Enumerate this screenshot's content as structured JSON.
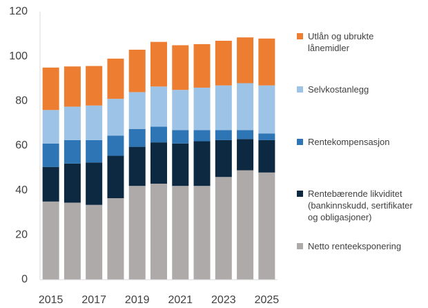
{
  "chart_data": {
    "type": "bar",
    "stacked": true,
    "categories": [
      "2015",
      null,
      "2017",
      null,
      "2019",
      null,
      "2021",
      null,
      "2023",
      null,
      "2025"
    ],
    "series": [
      {
        "name": "Netto renteeksponering",
        "color": "#aeaaaa",
        "values": [
          35,
          34.5,
          33.5,
          36.5,
          42,
          43,
          42,
          42,
          46,
          49,
          48
        ]
      },
      {
        "name": "Rentebærende likviditet (bankinnskudd, sertifikater og obligasjoner)",
        "color": "#0d2841",
        "values": [
          15.5,
          17.5,
          19,
          19,
          17.5,
          18.5,
          19,
          20,
          16.5,
          14,
          14.5
        ]
      },
      {
        "name": "Rentekompensasjon",
        "color": "#2e75b6",
        "values": [
          10.5,
          10.5,
          10,
          9,
          8,
          7,
          6,
          5,
          4.5,
          4,
          3
        ]
      },
      {
        "name": "Selvkostanlegg",
        "color": "#9dc3e6",
        "values": [
          15,
          15,
          15.5,
          16.5,
          16.5,
          18,
          18,
          19,
          20,
          21,
          21.5
        ]
      },
      {
        "name": "Utlån og ubrukte lånemidler",
        "color": "#ed7d31",
        "values": [
          19,
          18,
          17.7,
          18,
          19,
          20,
          20,
          19.5,
          20,
          20.5,
          21
        ]
      }
    ],
    "ylim": [
      0,
      120
    ],
    "yticks": [
      0,
      20,
      40,
      60,
      80,
      100,
      120
    ],
    "grid": false,
    "legend": "right"
  }
}
